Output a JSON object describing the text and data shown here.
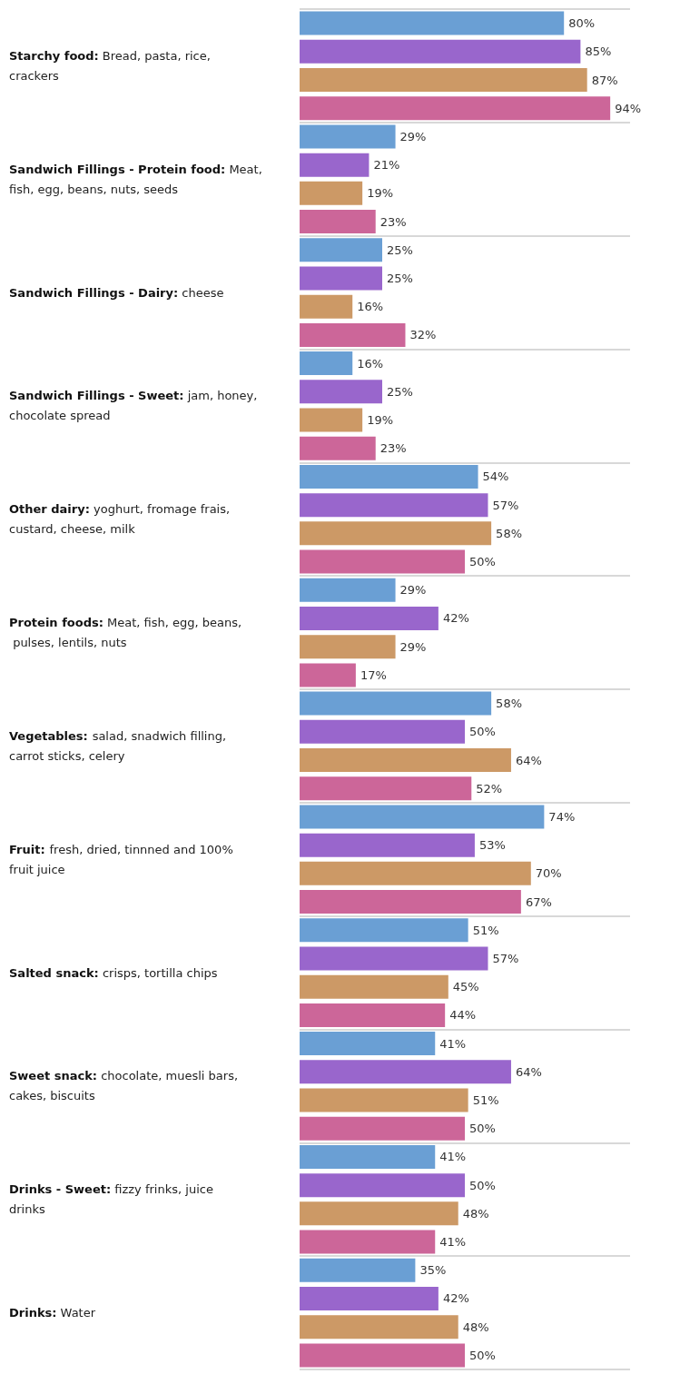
{
  "chart_data": {
    "type": "bar",
    "orientation": "horizontal",
    "grid": "y",
    "categories": [
      "Starchy food: Bread, pasta, rice, crackers",
      "Sandwich Fillings - Protein food: Meat, fish, egg, beans, nuts, seeds",
      "Sandwich Fillings - Dairy: cheese",
      "Sandwich Fillings - Sweet: jam, honey, chocolate spread",
      "Other dairy: yoghurt, fromage frais, custard, cheese, milk",
      "Protein foods: Meat, fish, egg, beans, pulses, lentils, nuts",
      "Vegetables: salad, snadwich filling, carrot sticks, celery",
      "Fruit: fresh, dried, tinnned and 100% fruit juice",
      "Salted snack: crisps, tortilla chips",
      "Sweet snack: chocolate, muesli bars, cakes, biscuits",
      "Drinks - Sweet: fizzy frinks, juice drinks",
      "Drinks: Water"
    ],
    "series": [
      {
        "color": "#6a9fd4",
        "values": [
          80,
          29,
          25,
          16,
          54,
          29,
          58,
          74,
          51,
          41,
          41,
          35
        ],
        "value_labels": [
          "80%",
          "29%",
          "25%",
          "16%",
          "54%",
          "29%",
          "58%",
          "74%",
          "51%",
          "41%",
          "41%",
          "35%"
        ]
      },
      {
        "color": "#9966cc",
        "values": [
          85,
          21,
          25,
          25,
          57,
          42,
          50,
          53,
          57,
          64,
          50,
          42
        ],
        "value_labels": [
          "85%",
          "21%",
          "25%",
          "25%",
          "57%",
          "42%",
          "50%",
          "53%",
          "57%",
          "64%",
          "50%",
          "42%"
        ]
      },
      {
        "color": "#cc9966",
        "values": [
          87,
          19,
          16,
          19,
          58,
          29,
          64,
          70,
          45,
          51,
          48,
          48
        ],
        "value_labels": [
          "87%",
          "19%",
          "16%",
          "19%",
          "58%",
          "29%",
          "64%",
          "70%",
          "45%",
          "51%",
          "48%",
          "48%"
        ]
      },
      {
        "color": "#cc6699",
        "values": [
          94,
          23,
          32,
          23,
          50,
          17,
          52,
          67,
          44,
          50,
          41,
          50
        ],
        "value_labels": [
          "94%",
          "23%",
          "32%",
          "23%",
          "50%",
          "17%",
          "52%",
          "67%",
          "44%",
          "50%",
          "41%",
          "50%"
        ]
      }
    ]
  }
}
